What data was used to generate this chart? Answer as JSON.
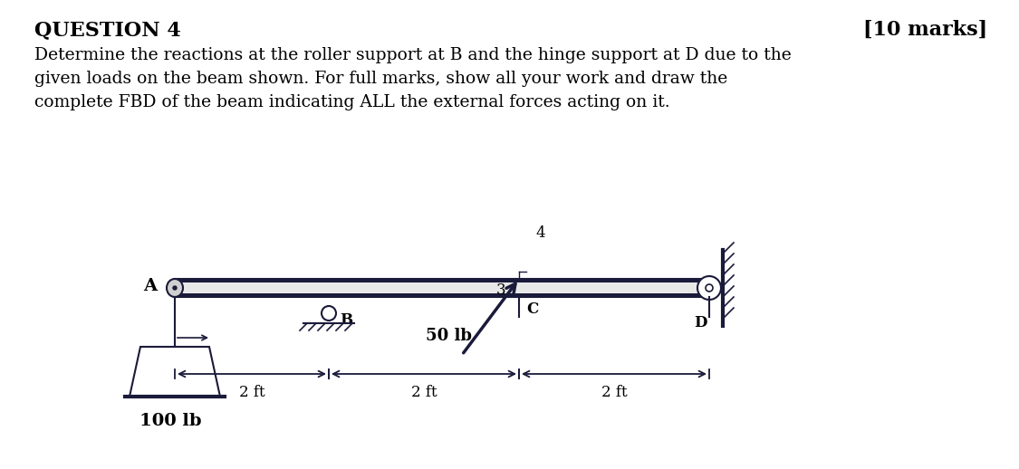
{
  "title_left": "QUESTION 4",
  "title_right": "[10 marks]",
  "description_line1": "Determine the reactions at the roller support at B and the hinge support at D due to the",
  "description_line2": "given loads on the beam shown. For full marks, show all your work and draw the",
  "description_line3": "complete FBD of the beam indicating ALL the external forces acting on it.",
  "bg_color": "#ffffff",
  "text_color": "#000000",
  "label_A": "A",
  "label_B": "B",
  "label_C": "C",
  "label_D": "D",
  "load_100lb_label": "100 lb",
  "load_50lb_label": "50 lb",
  "label_4": "4",
  "label_3": "3",
  "dim_label_1": "2 ft",
  "dim_label_2": "2 ft",
  "dim_label_3": "2 ft",
  "beam_color_main": "#c8c8c8",
  "beam_color_top": "#3a3a5c",
  "beam_color_bot": "#3a3a5c",
  "dark_navy": "#1a1a3a"
}
